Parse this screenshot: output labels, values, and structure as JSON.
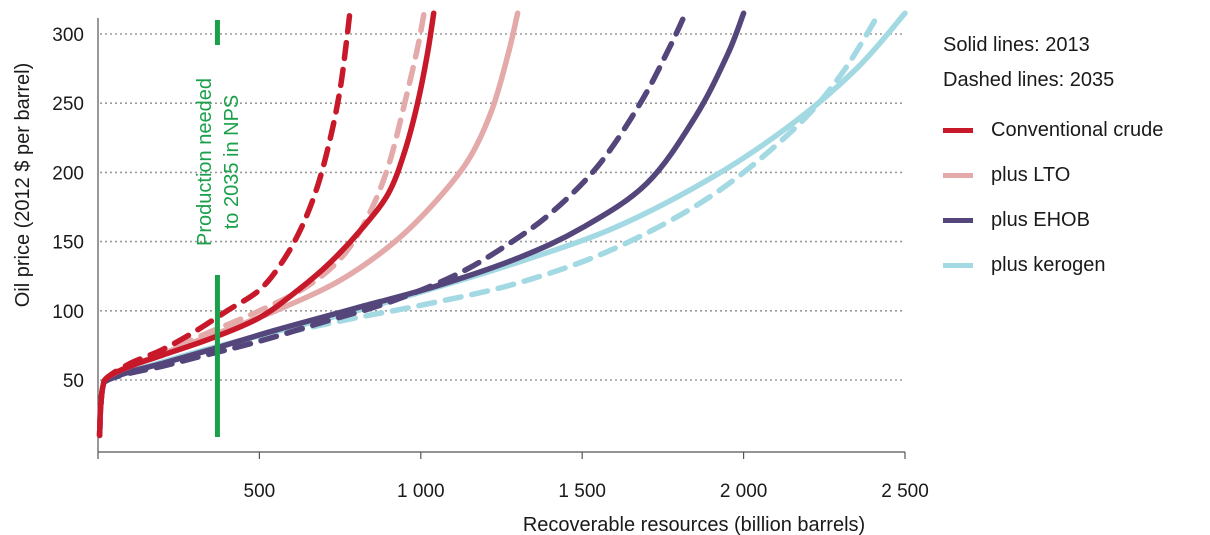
{
  "chart_data": {
    "type": "line",
    "xlabel": "Recoverable resources (billion barrels)",
    "ylabel": "Oil price (2012 $ per barrel)",
    "xlim": [
      0,
      2500
    ],
    "ylim": [
      0,
      315
    ],
    "x_ticks": [
      500,
      1000,
      1500,
      2000,
      2500
    ],
    "x_tick_labels": [
      "500",
      "1 000",
      "1 500",
      "2 000",
      "2 500"
    ],
    "y_ticks": [
      50,
      100,
      150,
      200,
      250,
      300
    ],
    "y_tick_labels": [
      "50",
      "100",
      "150",
      "200",
      "250",
      "300"
    ],
    "grid": "horizontal dotted",
    "notes": [
      "Solid lines: 2013",
      "Dashed lines: 2035"
    ],
    "annotation": {
      "text": [
        "Production needed",
        "to 2035 in NPS"
      ],
      "x": 370,
      "color": "#1aa04a"
    },
    "series": [
      {
        "name": "plus kerogen",
        "color": "#a3d9e2",
        "style": "dashed",
        "points": [
          [
            5,
            10
          ],
          [
            8,
            30
          ],
          [
            15,
            45
          ],
          [
            30,
            50
          ],
          [
            100,
            56
          ],
          [
            200,
            62
          ],
          [
            350,
            72
          ],
          [
            600,
            85
          ],
          [
            800,
            95
          ],
          [
            1000,
            104
          ],
          [
            1300,
            120
          ],
          [
            1600,
            145
          ],
          [
            1900,
            183
          ],
          [
            2150,
            230
          ],
          [
            2300,
            270
          ],
          [
            2420,
            315
          ]
        ]
      },
      {
        "name": "plus kerogen",
        "color": "#a3d9e2",
        "style": "solid",
        "points": [
          [
            5,
            10
          ],
          [
            8,
            30
          ],
          [
            15,
            45
          ],
          [
            30,
            50
          ],
          [
            100,
            56
          ],
          [
            200,
            63
          ],
          [
            350,
            73
          ],
          [
            550,
            85
          ],
          [
            800,
            100
          ],
          [
            1050,
            117
          ],
          [
            1300,
            135
          ],
          [
            1600,
            160
          ],
          [
            1900,
            196
          ],
          [
            2150,
            235
          ],
          [
            2350,
            275
          ],
          [
            2500,
            315
          ]
        ]
      },
      {
        "name": "plus EHOB",
        "color": "#54467a",
        "style": "dashed",
        "points": [
          [
            5,
            10
          ],
          [
            8,
            30
          ],
          [
            15,
            45
          ],
          [
            30,
            50
          ],
          [
            100,
            55
          ],
          [
            200,
            60
          ],
          [
            300,
            66
          ],
          [
            500,
            78
          ],
          [
            700,
            92
          ],
          [
            900,
            106
          ],
          [
            1100,
            125
          ],
          [
            1250,
            145
          ],
          [
            1400,
            170
          ],
          [
            1550,
            205
          ],
          [
            1680,
            250
          ],
          [
            1770,
            290
          ],
          [
            1820,
            315
          ]
        ]
      },
      {
        "name": "plus EHOB",
        "color": "#54467a",
        "style": "solid",
        "points": [
          [
            5,
            10
          ],
          [
            8,
            30
          ],
          [
            15,
            45
          ],
          [
            30,
            50
          ],
          [
            100,
            56
          ],
          [
            200,
            62
          ],
          [
            350,
            72
          ],
          [
            550,
            86
          ],
          [
            800,
            102
          ],
          [
            1050,
            118
          ],
          [
            1300,
            138
          ],
          [
            1500,
            160
          ],
          [
            1700,
            192
          ],
          [
            1850,
            240
          ],
          [
            1950,
            285
          ],
          [
            2000,
            315
          ]
        ]
      },
      {
        "name": "plus LTO",
        "color": "#e4a9a9",
        "style": "dashed",
        "points": [
          [
            5,
            10
          ],
          [
            8,
            30
          ],
          [
            15,
            45
          ],
          [
            30,
            52
          ],
          [
            100,
            60
          ],
          [
            200,
            70
          ],
          [
            350,
            85
          ],
          [
            500,
            100
          ],
          [
            650,
            118
          ],
          [
            760,
            140
          ],
          [
            840,
            170
          ],
          [
            900,
            205
          ],
          [
            950,
            250
          ],
          [
            990,
            290
          ],
          [
            1010,
            315
          ]
        ]
      },
      {
        "name": "plus LTO",
        "color": "#e4a9a9",
        "style": "solid",
        "points": [
          [
            5,
            10
          ],
          [
            8,
            30
          ],
          [
            15,
            45
          ],
          [
            30,
            52
          ],
          [
            100,
            60
          ],
          [
            200,
            69
          ],
          [
            350,
            82
          ],
          [
            550,
            100
          ],
          [
            750,
            122
          ],
          [
            920,
            150
          ],
          [
            1050,
            180
          ],
          [
            1150,
            210
          ],
          [
            1220,
            245
          ],
          [
            1270,
            285
          ],
          [
            1300,
            315
          ]
        ]
      },
      {
        "name": "Conventional crude",
        "color": "#c8192a",
        "style": "dashed",
        "points": [
          [
            5,
            10
          ],
          [
            8,
            30
          ],
          [
            15,
            45
          ],
          [
            30,
            52
          ],
          [
            100,
            62
          ],
          [
            200,
            72
          ],
          [
            300,
            85
          ],
          [
            400,
            100
          ],
          [
            500,
            115
          ],
          [
            570,
            135
          ],
          [
            630,
            160
          ],
          [
            680,
            190
          ],
          [
            720,
            225
          ],
          [
            750,
            260
          ],
          [
            770,
            295
          ],
          [
            780,
            315
          ]
        ]
      },
      {
        "name": "Conventional crude",
        "color": "#c8192a",
        "style": "solid",
        "points": [
          [
            5,
            10
          ],
          [
            8,
            30
          ],
          [
            15,
            45
          ],
          [
            30,
            52
          ],
          [
            100,
            60
          ],
          [
            200,
            68
          ],
          [
            350,
            80
          ],
          [
            500,
            95
          ],
          [
            620,
            115
          ],
          [
            720,
            135
          ],
          [
            820,
            160
          ],
          [
            900,
            185
          ],
          [
            950,
            215
          ],
          [
            990,
            250
          ],
          [
            1020,
            285
          ],
          [
            1040,
            315
          ]
        ]
      }
    ]
  },
  "legend": {
    "notes": [
      "Solid lines: 2013",
      "Dashed lines: 2035"
    ],
    "items": [
      {
        "label": "Conventional crude",
        "color": "#c8192a"
      },
      {
        "label": "plus LTO",
        "color": "#e4a9a9"
      },
      {
        "label": "plus EHOB",
        "color": "#54467a"
      },
      {
        "label": "plus kerogen",
        "color": "#a3d9e2"
      }
    ]
  }
}
